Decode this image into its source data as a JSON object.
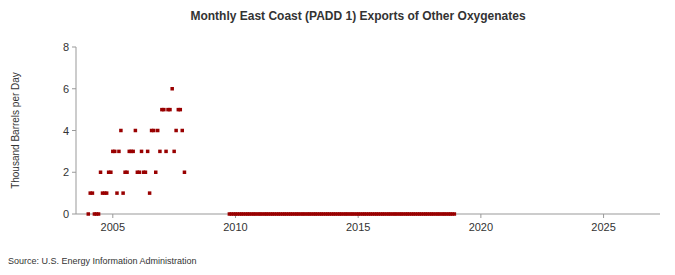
{
  "chart_data": {
    "type": "scatter",
    "title": "Monthly East Coast (PADD 1) Exports of Other Oxygenates",
    "y_label": "Thousand Barrels per Day",
    "source": "Source: U.S. Energy Information Administration",
    "color": "#990000",
    "marker": "square",
    "grid": false,
    "xlim": [
      2003.5,
      2027.3
    ],
    "xticks": [
      2005,
      2010,
      2015,
      2020,
      2025
    ],
    "ylim": [
      0,
      8
    ],
    "yticks": [
      0,
      2,
      4,
      6,
      8
    ],
    "x": [
      2004,
      2004.08,
      2004.17,
      2004.25,
      2004.33,
      2004.42,
      2004.5,
      2004.58,
      2004.67,
      2004.75,
      2004.83,
      2004.92,
      2005,
      2005.08,
      2005.17,
      2005.25,
      2005.33,
      2005.42,
      2005.5,
      2005.58,
      2005.67,
      2005.75,
      2005.83,
      2005.92,
      2006,
      2006.08,
      2006.17,
      2006.25,
      2006.33,
      2006.42,
      2006.5,
      2006.58,
      2006.67,
      2006.75,
      2006.83,
      2006.92,
      2007,
      2007.08,
      2007.17,
      2007.25,
      2007.33,
      2007.42,
      2007.5,
      2007.58,
      2007.67,
      2007.75,
      2007.83,
      2007.92,
      2009.75,
      2009.83,
      2009.92,
      2010,
      2010.08,
      2010.17,
      2010.25,
      2010.33,
      2010.42,
      2010.5,
      2010.58,
      2010.67,
      2010.75,
      2010.83,
      2010.92,
      2011,
      2011.08,
      2011.17,
      2011.25,
      2011.33,
      2011.42,
      2011.5,
      2011.58,
      2011.67,
      2011.75,
      2011.83,
      2011.92,
      2012,
      2012.08,
      2012.17,
      2012.25,
      2012.33,
      2012.42,
      2012.5,
      2012.58,
      2012.67,
      2012.75,
      2012.83,
      2012.92,
      2013,
      2013.08,
      2013.17,
      2013.25,
      2013.33,
      2013.42,
      2013.5,
      2013.58,
      2013.67,
      2013.75,
      2013.83,
      2013.92,
      2014,
      2014.08,
      2014.17,
      2014.25,
      2014.33,
      2014.42,
      2014.5,
      2014.58,
      2014.67,
      2014.75,
      2014.83,
      2014.92,
      2015,
      2015.08,
      2015.17,
      2015.25,
      2015.33,
      2015.42,
      2015.5,
      2015.58,
      2015.67,
      2015.75,
      2015.83,
      2015.92,
      2016,
      2016.08,
      2016.17,
      2016.25,
      2016.33,
      2016.42,
      2016.5,
      2016.58,
      2016.67,
      2016.75,
      2016.83,
      2016.92,
      2017,
      2017.08,
      2017.17,
      2017.25,
      2017.33,
      2017.42,
      2017.5,
      2017.58,
      2017.67,
      2017.75,
      2017.83,
      2017.92,
      2018,
      2018.08,
      2018.17,
      2018.25,
      2018.33,
      2018.42,
      2018.5,
      2018.58,
      2018.67,
      2018.75,
      2018.83,
      2018.92
    ],
    "values": [
      0,
      1,
      1,
      0,
      0,
      0,
      2,
      1,
      1,
      1,
      2,
      2,
      3,
      3,
      1,
      3,
      4,
      1,
      2,
      2,
      3,
      3,
      3,
      4,
      2,
      2,
      3,
      2,
      2,
      3,
      1,
      4,
      4,
      2,
      4,
      3,
      5,
      5,
      3,
      5,
      5,
      6,
      3,
      4,
      5,
      5,
      4,
      2,
      0,
      0,
      0,
      0,
      0,
      0,
      0,
      0,
      0,
      0,
      0,
      0,
      0,
      0,
      0,
      0,
      0,
      0,
      0,
      0,
      0,
      0,
      0,
      0,
      0,
      0,
      0,
      0,
      0,
      0,
      0,
      0,
      0,
      0,
      0,
      0,
      0,
      0,
      0,
      0,
      0,
      0,
      0,
      0,
      0,
      0,
      0,
      0,
      0,
      0,
      0,
      0,
      0,
      0,
      0,
      0,
      0,
      0,
      0,
      0,
      0,
      0,
      0,
      0,
      0,
      0,
      0,
      0,
      0,
      0,
      0,
      0,
      0,
      0,
      0,
      0,
      0,
      0,
      0,
      0,
      0,
      0,
      0,
      0,
      0,
      0,
      0,
      0,
      0,
      0,
      0,
      0,
      0,
      0,
      0,
      0,
      0,
      0,
      0,
      0,
      0,
      0,
      0,
      0,
      0,
      0,
      0,
      0,
      0,
      0,
      0
    ]
  }
}
